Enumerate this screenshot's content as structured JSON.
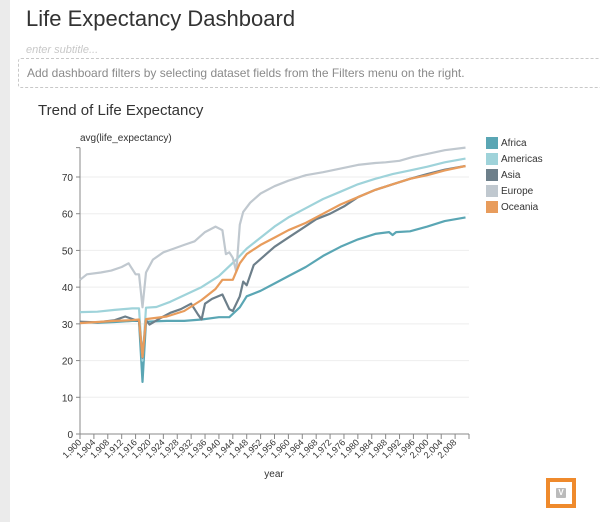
{
  "dashboard": {
    "title": "Life Expectancy Dashboard",
    "subtitle_placeholder": "enter subtitle...",
    "filters_hint": "Add dashboard filters by selecting dataset fields from the Filters menu on the right."
  },
  "chart_data": {
    "type": "line",
    "title": "Trend of Life Expectancy",
    "xlabel": "year",
    "ylabel": "avg(life_expectancy)",
    "xlim": [
      1900,
      2012
    ],
    "ylim": [
      0,
      78
    ],
    "yticks": [
      0,
      10,
      20,
      30,
      40,
      50,
      60,
      70
    ],
    "xticks": [
      "1,900",
      "1,904",
      "1,908",
      "1,912",
      "1,916",
      "1,920",
      "1,924",
      "1,928",
      "1,932",
      "1,936",
      "1,940",
      "1,944",
      "1,948",
      "1,952",
      "1,956",
      "1,960",
      "1,964",
      "1,968",
      "1,972",
      "1,976",
      "1,980",
      "1,984",
      "1,988",
      "1,992",
      "1,996",
      "2,000",
      "2,004",
      "2,008"
    ],
    "grid": true,
    "legend_position": "right",
    "series": [
      {
        "name": "Africa",
        "color": "#5aa6b4",
        "points": [
          [
            1900,
            30.5
          ],
          [
            1905,
            30.3
          ],
          [
            1910,
            30.5
          ],
          [
            1915,
            30.8
          ],
          [
            1917,
            30.8
          ],
          [
            1918,
            14.2
          ],
          [
            1919,
            30.6
          ],
          [
            1925,
            30.8
          ],
          [
            1930,
            30.8
          ],
          [
            1935,
            31.2
          ],
          [
            1940,
            31.8
          ],
          [
            1943,
            31.8
          ],
          [
            1946,
            34.5
          ],
          [
            1948,
            37.5
          ],
          [
            1952,
            39
          ],
          [
            1956,
            41
          ],
          [
            1960,
            43
          ],
          [
            1965,
            45.5
          ],
          [
            1970,
            48.5
          ],
          [
            1975,
            51
          ],
          [
            1980,
            53
          ],
          [
            1985,
            54.5
          ],
          [
            1989,
            55
          ],
          [
            1990,
            54.2
          ],
          [
            1991,
            55
          ],
          [
            1995,
            55.2
          ],
          [
            2000,
            56.5
          ],
          [
            2005,
            58
          ],
          [
            2011,
            59
          ]
        ]
      },
      {
        "name": "Americas",
        "color": "#9fd3da",
        "points": [
          [
            1900,
            33.2
          ],
          [
            1905,
            33.3
          ],
          [
            1910,
            33.8
          ],
          [
            1915,
            34.2
          ],
          [
            1917,
            34.2
          ],
          [
            1918,
            20
          ],
          [
            1919,
            34.4
          ],
          [
            1922,
            34.6
          ],
          [
            1926,
            36
          ],
          [
            1930,
            37.8
          ],
          [
            1935,
            40
          ],
          [
            1940,
            43
          ],
          [
            1945,
            47.5
          ],
          [
            1948,
            50.5
          ],
          [
            1952,
            53.5
          ],
          [
            1956,
            56.5
          ],
          [
            1960,
            59
          ],
          [
            1965,
            61.5
          ],
          [
            1970,
            64
          ],
          [
            1975,
            66
          ],
          [
            1980,
            68
          ],
          [
            1985,
            69.5
          ],
          [
            1990,
            70.8
          ],
          [
            1995,
            71.8
          ],
          [
            2000,
            72.8
          ],
          [
            2005,
            74
          ],
          [
            2011,
            75
          ]
        ]
      },
      {
        "name": "Asia",
        "color": "#6d7f8a",
        "points": [
          [
            1900,
            30.6
          ],
          [
            1905,
            30.4
          ],
          [
            1910,
            31
          ],
          [
            1913,
            32
          ],
          [
            1916,
            31
          ],
          [
            1917,
            30.8
          ],
          [
            1918,
            20.8
          ],
          [
            1919,
            31
          ],
          [
            1920,
            29.8
          ],
          [
            1923,
            31.5
          ],
          [
            1926,
            33
          ],
          [
            1929,
            34
          ],
          [
            1932,
            35.5
          ],
          [
            1934,
            32.5
          ],
          [
            1935,
            31.2
          ],
          [
            1936,
            35.5
          ],
          [
            1938,
            36.8
          ],
          [
            1941,
            38
          ],
          [
            1943,
            34
          ],
          [
            1944,
            33.5
          ],
          [
            1946,
            37.5
          ],
          [
            1947,
            41.5
          ],
          [
            1948,
            40.5
          ],
          [
            1950,
            46
          ],
          [
            1953,
            48.5
          ],
          [
            1956,
            51
          ],
          [
            1960,
            53.5
          ],
          [
            1964,
            56
          ],
          [
            1968,
            58.5
          ],
          [
            1972,
            60
          ],
          [
            1976,
            62
          ],
          [
            1980,
            64.5
          ],
          [
            1985,
            66.5
          ],
          [
            1990,
            68
          ],
          [
            1995,
            69.5
          ],
          [
            2000,
            70.8
          ],
          [
            2005,
            72
          ],
          [
            2011,
            73
          ]
        ]
      },
      {
        "name": "Europe",
        "color": "#c0c8cf",
        "points": [
          [
            1900,
            42
          ],
          [
            1902,
            43.5
          ],
          [
            1906,
            44
          ],
          [
            1909,
            44.5
          ],
          [
            1912,
            45.5
          ],
          [
            1914,
            46.5
          ],
          [
            1915,
            45
          ],
          [
            1916,
            43.5
          ],
          [
            1917,
            43.5
          ],
          [
            1918,
            34.5
          ],
          [
            1919,
            44
          ],
          [
            1921,
            47.5
          ],
          [
            1924,
            49.5
          ],
          [
            1927,
            50.5
          ],
          [
            1930,
            51.5
          ],
          [
            1933,
            52.5
          ],
          [
            1936,
            55
          ],
          [
            1939,
            56.5
          ],
          [
            1941,
            55.5
          ],
          [
            1942,
            49
          ],
          [
            1943,
            49.5
          ],
          [
            1944,
            48
          ],
          [
            1945,
            44.2
          ],
          [
            1946,
            57
          ],
          [
            1947,
            60.5
          ],
          [
            1949,
            63
          ],
          [
            1952,
            65.5
          ],
          [
            1956,
            67.5
          ],
          [
            1960,
            69
          ],
          [
            1965,
            70.5
          ],
          [
            1970,
            71.3
          ],
          [
            1975,
            72.3
          ],
          [
            1980,
            73.3
          ],
          [
            1985,
            73.8
          ],
          [
            1988,
            74
          ],
          [
            1992,
            74.4
          ],
          [
            1996,
            75.5
          ],
          [
            2000,
            76.3
          ],
          [
            2005,
            77.3
          ],
          [
            2011,
            78
          ]
        ]
      },
      {
        "name": "Oceania",
        "color": "#e89c5c",
        "points": [
          [
            1900,
            30.2
          ],
          [
            1905,
            30.5
          ],
          [
            1910,
            30.8
          ],
          [
            1915,
            31
          ],
          [
            1917,
            31.2
          ],
          [
            1918,
            21
          ],
          [
            1919,
            31.3
          ],
          [
            1925,
            32
          ],
          [
            1930,
            33.5
          ],
          [
            1935,
            36.5
          ],
          [
            1939,
            39.5
          ],
          [
            1941,
            42
          ],
          [
            1944,
            42
          ],
          [
            1946,
            46.5
          ],
          [
            1948,
            49
          ],
          [
            1952,
            51.5
          ],
          [
            1956,
            53.5
          ],
          [
            1960,
            55.5
          ],
          [
            1965,
            57.5
          ],
          [
            1970,
            60
          ],
          [
            1975,
            62.5
          ],
          [
            1980,
            64.5
          ],
          [
            1985,
            66.5
          ],
          [
            1990,
            68
          ],
          [
            1995,
            69.5
          ],
          [
            2000,
            70.5
          ],
          [
            2005,
            71.8
          ],
          [
            2011,
            73
          ]
        ]
      }
    ]
  },
  "corner_button": {
    "label": "V"
  }
}
